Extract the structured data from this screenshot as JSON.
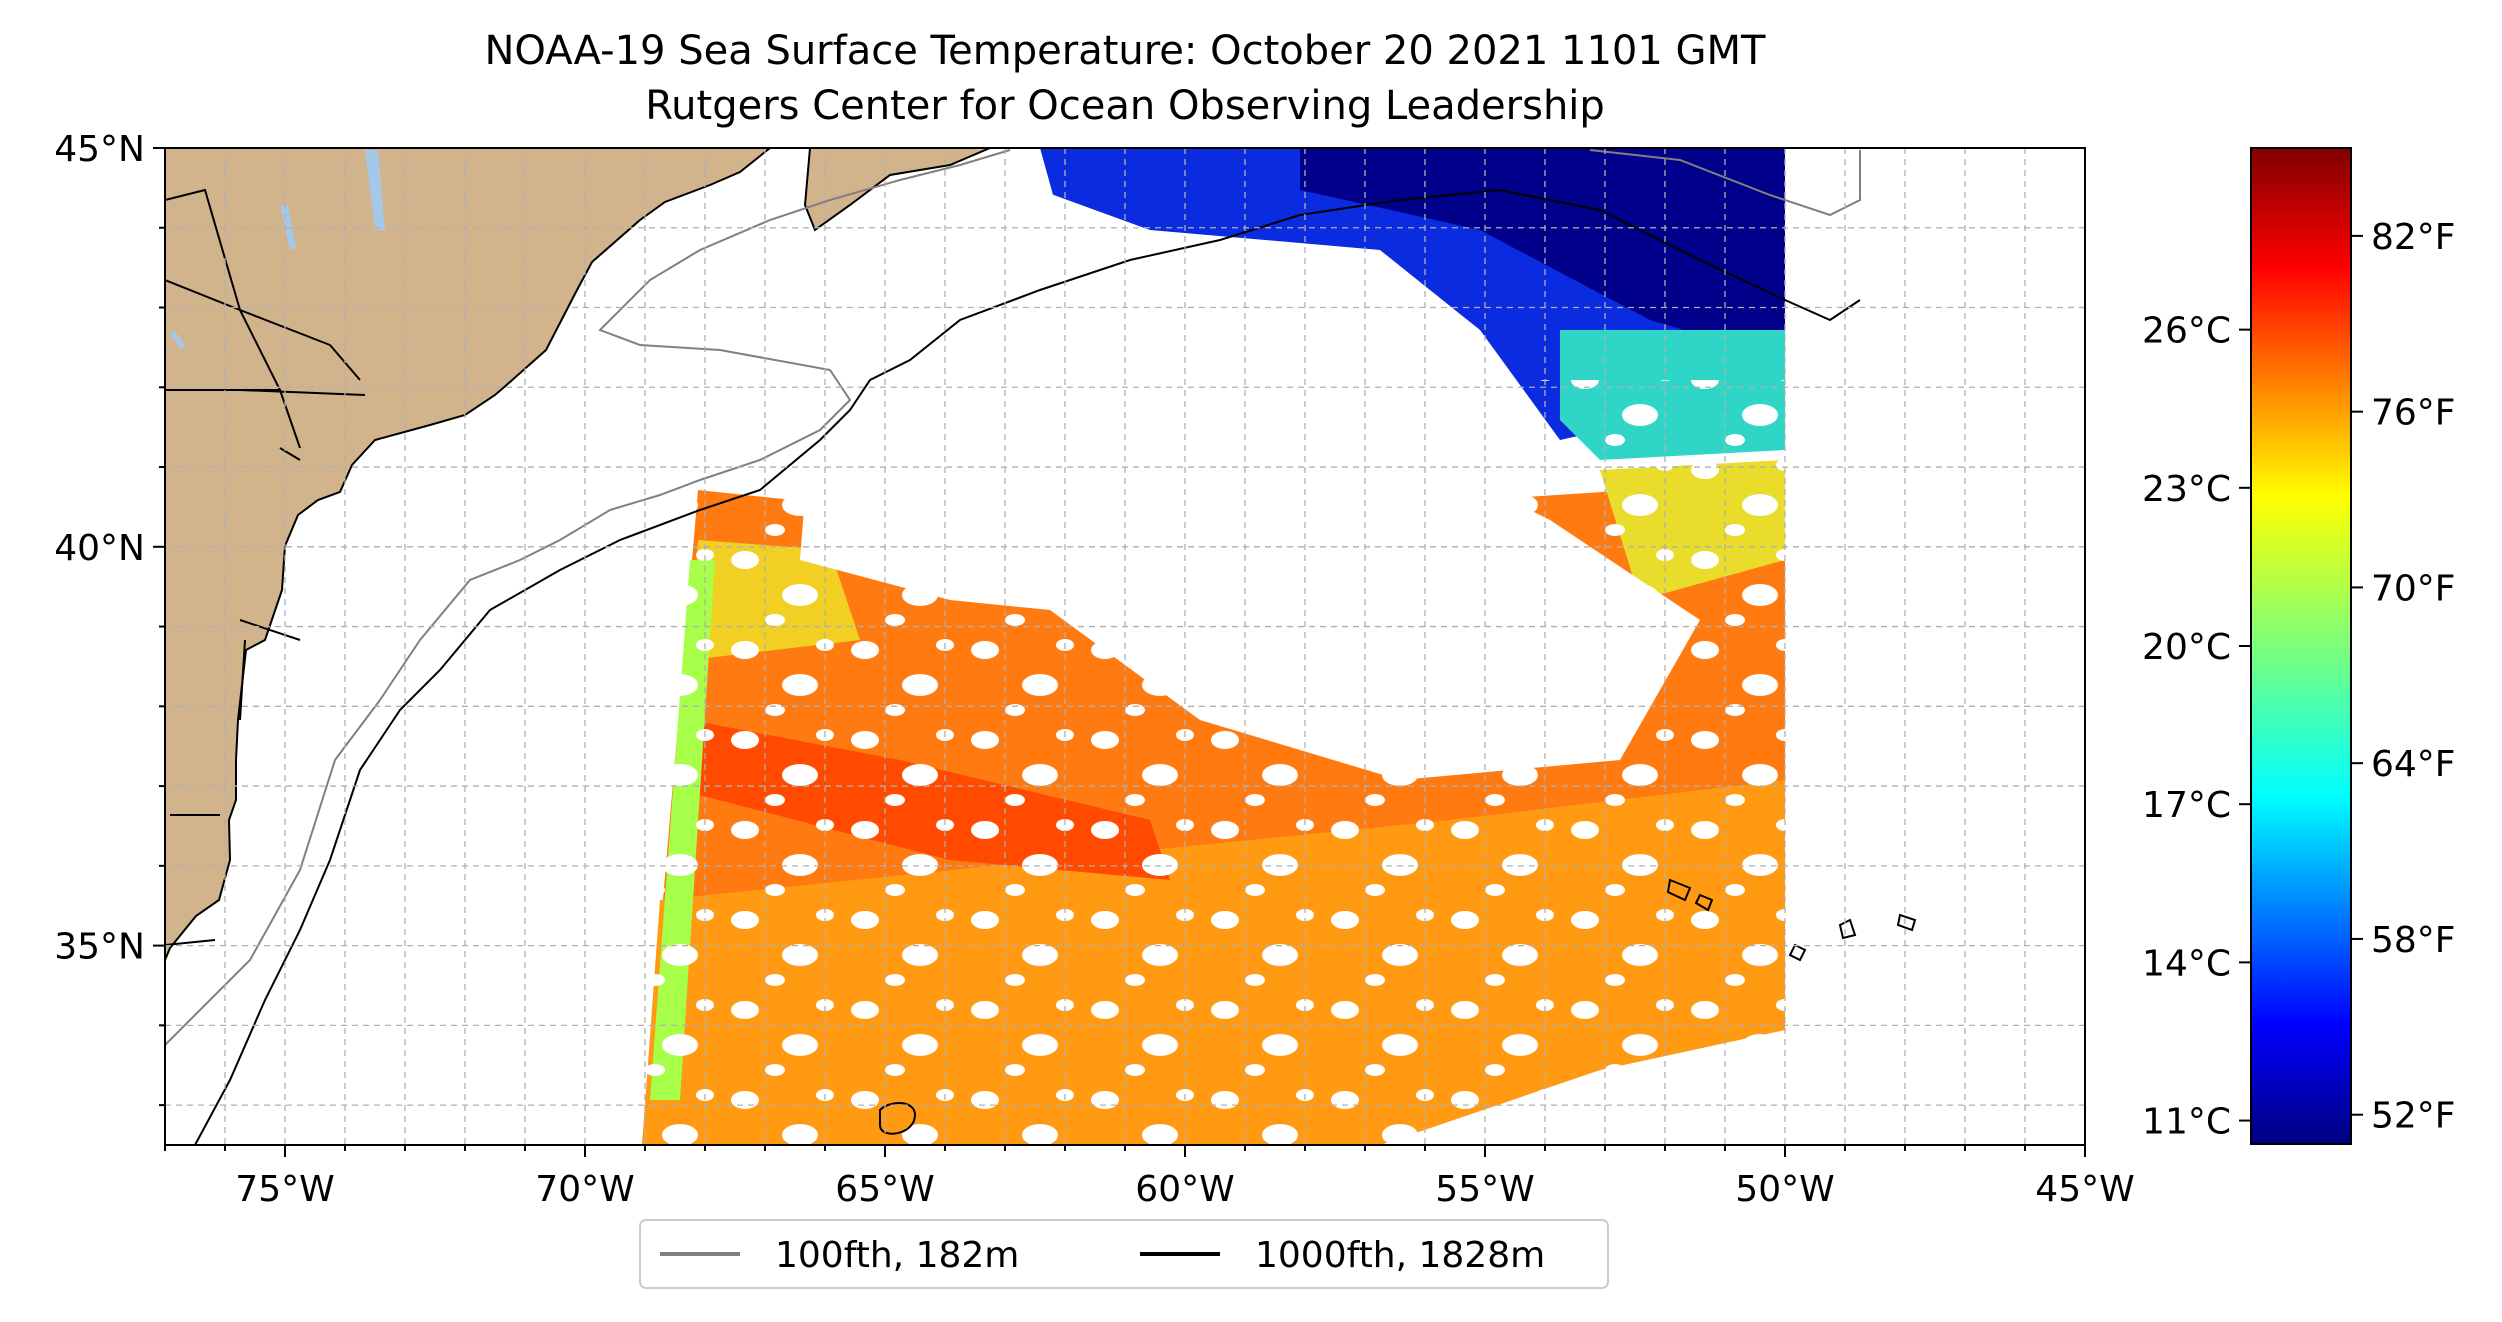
{
  "title": {
    "line1": "NOAA-19 Sea Surface Temperature: October 20 2021 1101 GMT",
    "line2": "Rutgers Center for Ocean Observing Leadership"
  },
  "map": {
    "lon_range": [
      -77,
      -45
    ],
    "lat_range": [
      32.5,
      45
    ],
    "swath_lon_range": [
      -69,
      -50
    ],
    "lon_ticks": [
      {
        "value": -75,
        "label": "75°W"
      },
      {
        "value": -70,
        "label": "70°W"
      },
      {
        "value": -65,
        "label": "65°W"
      },
      {
        "value": -60,
        "label": "60°W"
      },
      {
        "value": -55,
        "label": "55°W"
      },
      {
        "value": -50,
        "label": "50°W"
      },
      {
        "value": -45,
        "label": "45°W"
      }
    ],
    "lat_ticks": [
      {
        "value": 45,
        "label": "45°N"
      },
      {
        "value": 40,
        "label": "40°N"
      },
      {
        "value": 35,
        "label": "35°N"
      }
    ],
    "grid": true,
    "land_color": "#D2B48C",
    "water_color": "#A6C8E8"
  },
  "legend": {
    "placement": "bottom-center",
    "entries": [
      {
        "label": "100fth, 182m",
        "color": "#808080"
      },
      {
        "label": "1000fth, 1828m",
        "color": "#000000"
      }
    ]
  },
  "colorbar": {
    "colormap": "jet",
    "range_f": [
      51,
      85
    ],
    "celsius_ticks": [
      {
        "value": 11,
        "label": "11°C"
      },
      {
        "value": 14,
        "label": "14°C"
      },
      {
        "value": 17,
        "label": "17°C"
      },
      {
        "value": 20,
        "label": "20°C"
      },
      {
        "value": 23,
        "label": "23°C"
      },
      {
        "value": 26,
        "label": "26°C"
      }
    ],
    "fahrenheit_ticks": [
      {
        "value": 52,
        "label": "52°F"
      },
      {
        "value": 58,
        "label": "58°F"
      },
      {
        "value": 64,
        "label": "64°F"
      },
      {
        "value": 70,
        "label": "70°F"
      },
      {
        "value": 76,
        "label": "76°F"
      },
      {
        "value": 82,
        "label": "82°F"
      }
    ]
  }
}
